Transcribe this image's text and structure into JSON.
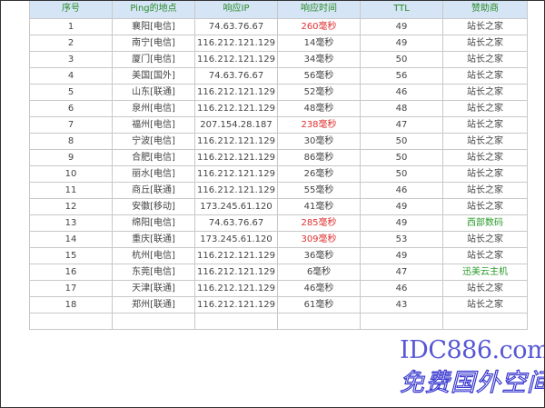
{
  "headers": [
    "序号",
    "Ping的地点",
    "响应IP",
    "响应时间",
    "TTL",
    "赞助商"
  ],
  "colors": {
    "header_bg": "#d5e5f5",
    "header_text": "#2a8a2a",
    "slow_time": "#e03030",
    "sponsor_alt": "#2a9a2a",
    "watermark": "#3a3ad0"
  },
  "rows": [
    {
      "no": "1",
      "location": "襄阳[电信]",
      "ip": "74.63.76.67",
      "time": "260毫秒",
      "ttl": "49",
      "sponsor": "站长之家",
      "slow": true
    },
    {
      "no": "2",
      "location": "南宁[电信]",
      "ip": "116.212.121.129",
      "time": "14毫秒",
      "ttl": "49",
      "sponsor": "站长之家"
    },
    {
      "no": "3",
      "location": "厦门[电信]",
      "ip": "116.212.121.129",
      "time": "34毫秒",
      "ttl": "50",
      "sponsor": "站长之家"
    },
    {
      "no": "4",
      "location": "美国[国外]",
      "ip": "74.63.76.67",
      "time": "56毫秒",
      "ttl": "56",
      "sponsor": "站长之家"
    },
    {
      "no": "5",
      "location": "山东[联通]",
      "ip": "116.212.121.129",
      "time": "52毫秒",
      "ttl": "46",
      "sponsor": "站长之家"
    },
    {
      "no": "6",
      "location": "泉州[电信]",
      "ip": "116.212.121.129",
      "time": "48毫秒",
      "ttl": "48",
      "sponsor": "站长之家"
    },
    {
      "no": "7",
      "location": "福州[电信]",
      "ip": "207.154.28.187",
      "time": "238毫秒",
      "ttl": "47",
      "sponsor": "站长之家",
      "slow": true
    },
    {
      "no": "8",
      "location": "宁波[电信]",
      "ip": "116.212.121.129",
      "time": "30毫秒",
      "ttl": "50",
      "sponsor": "站长之家"
    },
    {
      "no": "9",
      "location": "合肥[电信]",
      "ip": "116.212.121.129",
      "time": "86毫秒",
      "ttl": "50",
      "sponsor": "站长之家"
    },
    {
      "no": "10",
      "location": "丽水[电信]",
      "ip": "116.212.121.129",
      "time": "26毫秒",
      "ttl": "50",
      "sponsor": "站长之家"
    },
    {
      "no": "11",
      "location": "商丘[联通]",
      "ip": "116.212.121.129",
      "time": "55毫秒",
      "ttl": "46",
      "sponsor": "站长之家"
    },
    {
      "no": "12",
      "location": "安徽[移动]",
      "ip": "173.245.61.120",
      "time": "41毫秒",
      "ttl": "49",
      "sponsor": "站长之家"
    },
    {
      "no": "13",
      "location": "绵阳[电信]",
      "ip": "74.63.76.67",
      "time": "285毫秒",
      "ttl": "49",
      "sponsor": "西部数码",
      "slow": true,
      "sponsor_green": true
    },
    {
      "no": "14",
      "location": "重庆[联通]",
      "ip": "173.245.61.120",
      "time": "309毫秒",
      "ttl": "53",
      "sponsor": "站长之家",
      "slow": true
    },
    {
      "no": "15",
      "location": "杭州[电信]",
      "ip": "116.212.121.129",
      "time": "36毫秒",
      "ttl": "49",
      "sponsor": "站长之家"
    },
    {
      "no": "16",
      "location": "东莞[电信]",
      "ip": "116.212.121.129",
      "time": "6毫秒",
      "ttl": "47",
      "sponsor": "迅美云主机",
      "sponsor_green": true
    },
    {
      "no": "17",
      "location": "天津[联通]",
      "ip": "116.212.121.129",
      "time": "46毫秒",
      "ttl": "46",
      "sponsor": "站长之家"
    },
    {
      "no": "18",
      "location": "郑州[联通]",
      "ip": "116.212.121.129",
      "time": "61毫秒",
      "ttl": "43",
      "sponsor": "站长之家"
    }
  ],
  "watermark": {
    "line1": "IDC886.com",
    "line2": "免费国外空间"
  }
}
